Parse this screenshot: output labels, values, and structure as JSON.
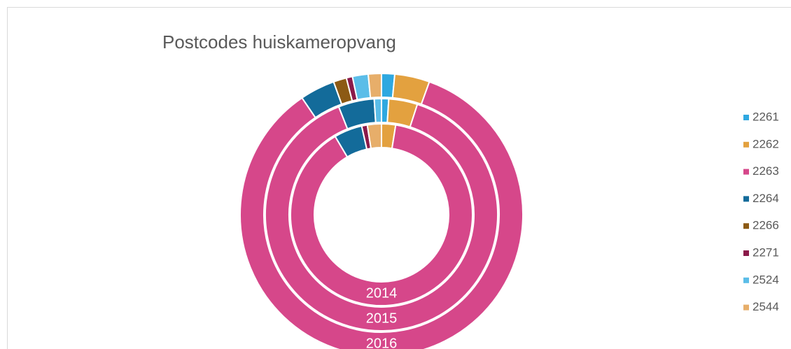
{
  "chart_data": {
    "type": "donut",
    "title": "Postcodes huiskameropvang",
    "categories": [
      "2261",
      "2262",
      "2263",
      "2264",
      "2266",
      "2271",
      "2524",
      "2544"
    ],
    "colors": [
      "#2fa8e0",
      "#e3a13f",
      "#d6478a",
      "#136b9a",
      "#8c5a14",
      "#8b1a4a",
      "#5bbde8",
      "#e7ae6a"
    ],
    "series": [
      {
        "name": "2014",
        "values": [
          0,
          2.5,
          89,
          5,
          0,
          1,
          0,
          2.5
        ]
      },
      {
        "name": "2015",
        "values": [
          1,
          4,
          89,
          5,
          0,
          0,
          1,
          0
        ]
      },
      {
        "name": "2016",
        "values": [
          1.5,
          4,
          85,
          4,
          1.5,
          0.7,
          1.8,
          1.5
        ]
      }
    ],
    "legend": "right"
  }
}
